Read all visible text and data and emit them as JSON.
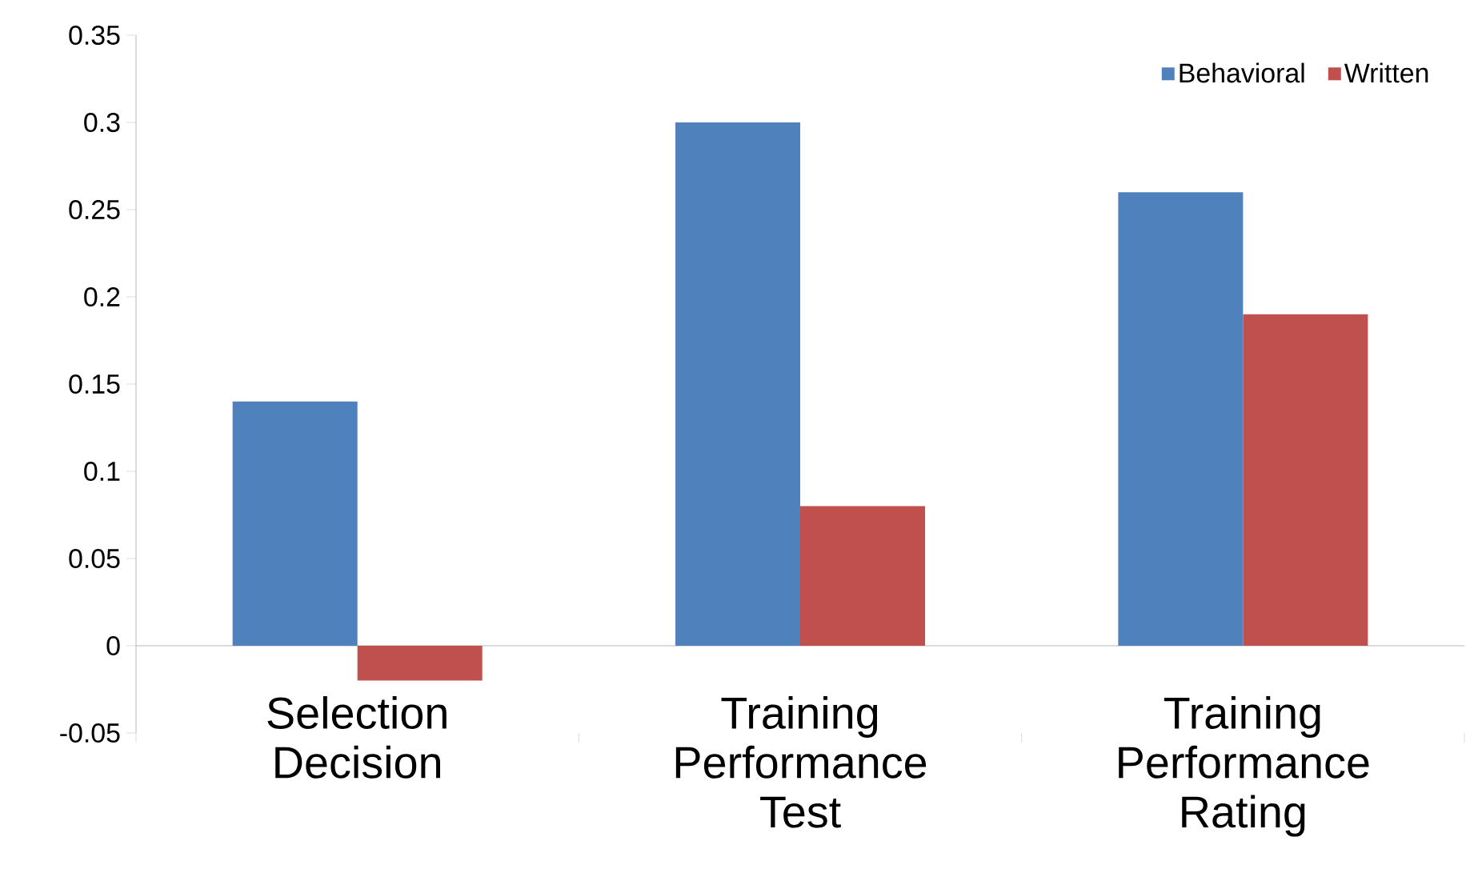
{
  "chart_data": {
    "type": "bar",
    "categories": [
      "Selection Decision",
      "Training Performance Test",
      "Training Performance Rating"
    ],
    "series": [
      {
        "name": "Behavioral",
        "color": "#4f81bd",
        "values": [
          0.14,
          0.3,
          0.26
        ]
      },
      {
        "name": "Written",
        "color": "#c0504d",
        "values": [
          -0.02,
          0.08,
          0.19
        ]
      }
    ],
    "ylim": [
      -0.05,
      0.35
    ],
    "yticks": [
      -0.05,
      0,
      0.05,
      0.1,
      0.15,
      0.2,
      0.25,
      0.3,
      0.35
    ],
    "legend": "top right"
  }
}
